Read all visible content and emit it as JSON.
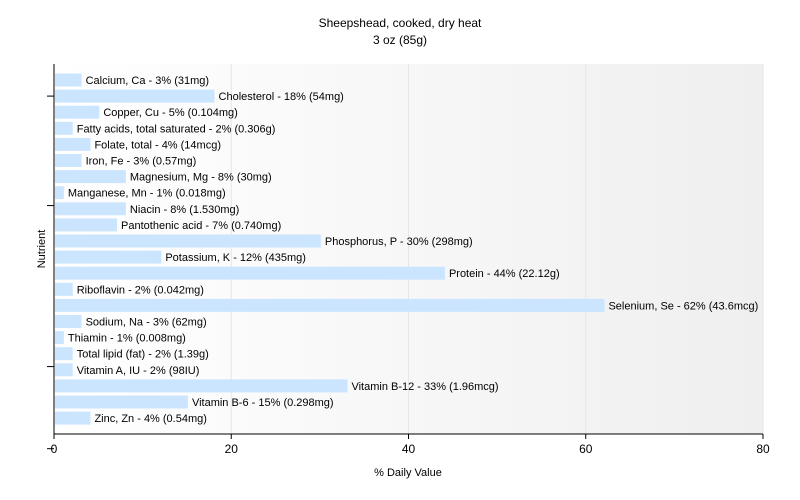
{
  "chart_data": {
    "type": "bar",
    "orientation": "horizontal",
    "title": "Sheepshead, cooked, dry heat",
    "subtitle": "3 oz (85g)",
    "xlabel": "% Daily Value",
    "ylabel": "Nutrient",
    "xlim": [
      0,
      80
    ],
    "xticks": [
      0,
      20,
      40,
      60,
      80
    ],
    "grid": true,
    "colors": {
      "bar": "#cce5ff",
      "axis": "#000000",
      "grid": "#e6e6e6"
    },
    "categories": [
      "Calcium, Ca",
      "Cholesterol",
      "Copper, Cu",
      "Fatty acids, total saturated",
      "Folate, total",
      "Iron, Fe",
      "Magnesium, Mg",
      "Manganese, Mn",
      "Niacin",
      "Pantothenic acid",
      "Phosphorus, P",
      "Potassium, K",
      "Protein",
      "Riboflavin",
      "Selenium, Se",
      "Sodium, Na",
      "Thiamin",
      "Total lipid (fat)",
      "Vitamin A, IU",
      "Vitamin B-12",
      "Vitamin B-6",
      "Zinc, Zn"
    ],
    "values": [
      3,
      18,
      5,
      2,
      4,
      3,
      8,
      1,
      8,
      7,
      30,
      12,
      44,
      2,
      62,
      3,
      1,
      2,
      2,
      33,
      15,
      4
    ],
    "labels": [
      "Calcium, Ca - 3% (31mg)",
      "Cholesterol - 18% (54mg)",
      "Copper, Cu - 5% (0.104mg)",
      "Fatty acids, total saturated - 2% (0.306g)",
      "Folate, total - 4% (14mcg)",
      "Iron, Fe - 3% (0.57mg)",
      "Magnesium, Mg - 8% (30mg)",
      "Manganese, Mn - 1% (0.018mg)",
      "Niacin - 8% (1.530mg)",
      "Pantothenic acid - 7% (0.740mg)",
      "Phosphorus, P - 30% (298mg)",
      "Potassium, K - 12% (435mg)",
      "Protein - 44% (22.12g)",
      "Riboflavin - 2% (0.042mg)",
      "Selenium, Se - 62% (43.6mcg)",
      "Sodium, Na - 3% (62mg)",
      "Thiamin - 1% (0.008mg)",
      "Total lipid (fat) - 2% (1.39g)",
      "Vitamin A, IU - 2% (98IU)",
      "Vitamin B-12 - 33% (1.96mcg)",
      "Vitamin B-6 - 15% (0.298mg)",
      "Zinc, Zn - 4% (0.54mg)"
    ]
  }
}
